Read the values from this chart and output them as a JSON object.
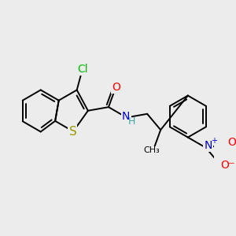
{
  "bg_color": "#ececec",
  "bond_color": "#000000",
  "bond_width": 1.4,
  "atom_colors": {
    "Cl": "#00bb00",
    "S": "#999900",
    "O": "#ff0000",
    "N": "#0000cc",
    "H": "#44aaaa"
  },
  "font_size": 10,
  "fig_bg": "#ececec"
}
